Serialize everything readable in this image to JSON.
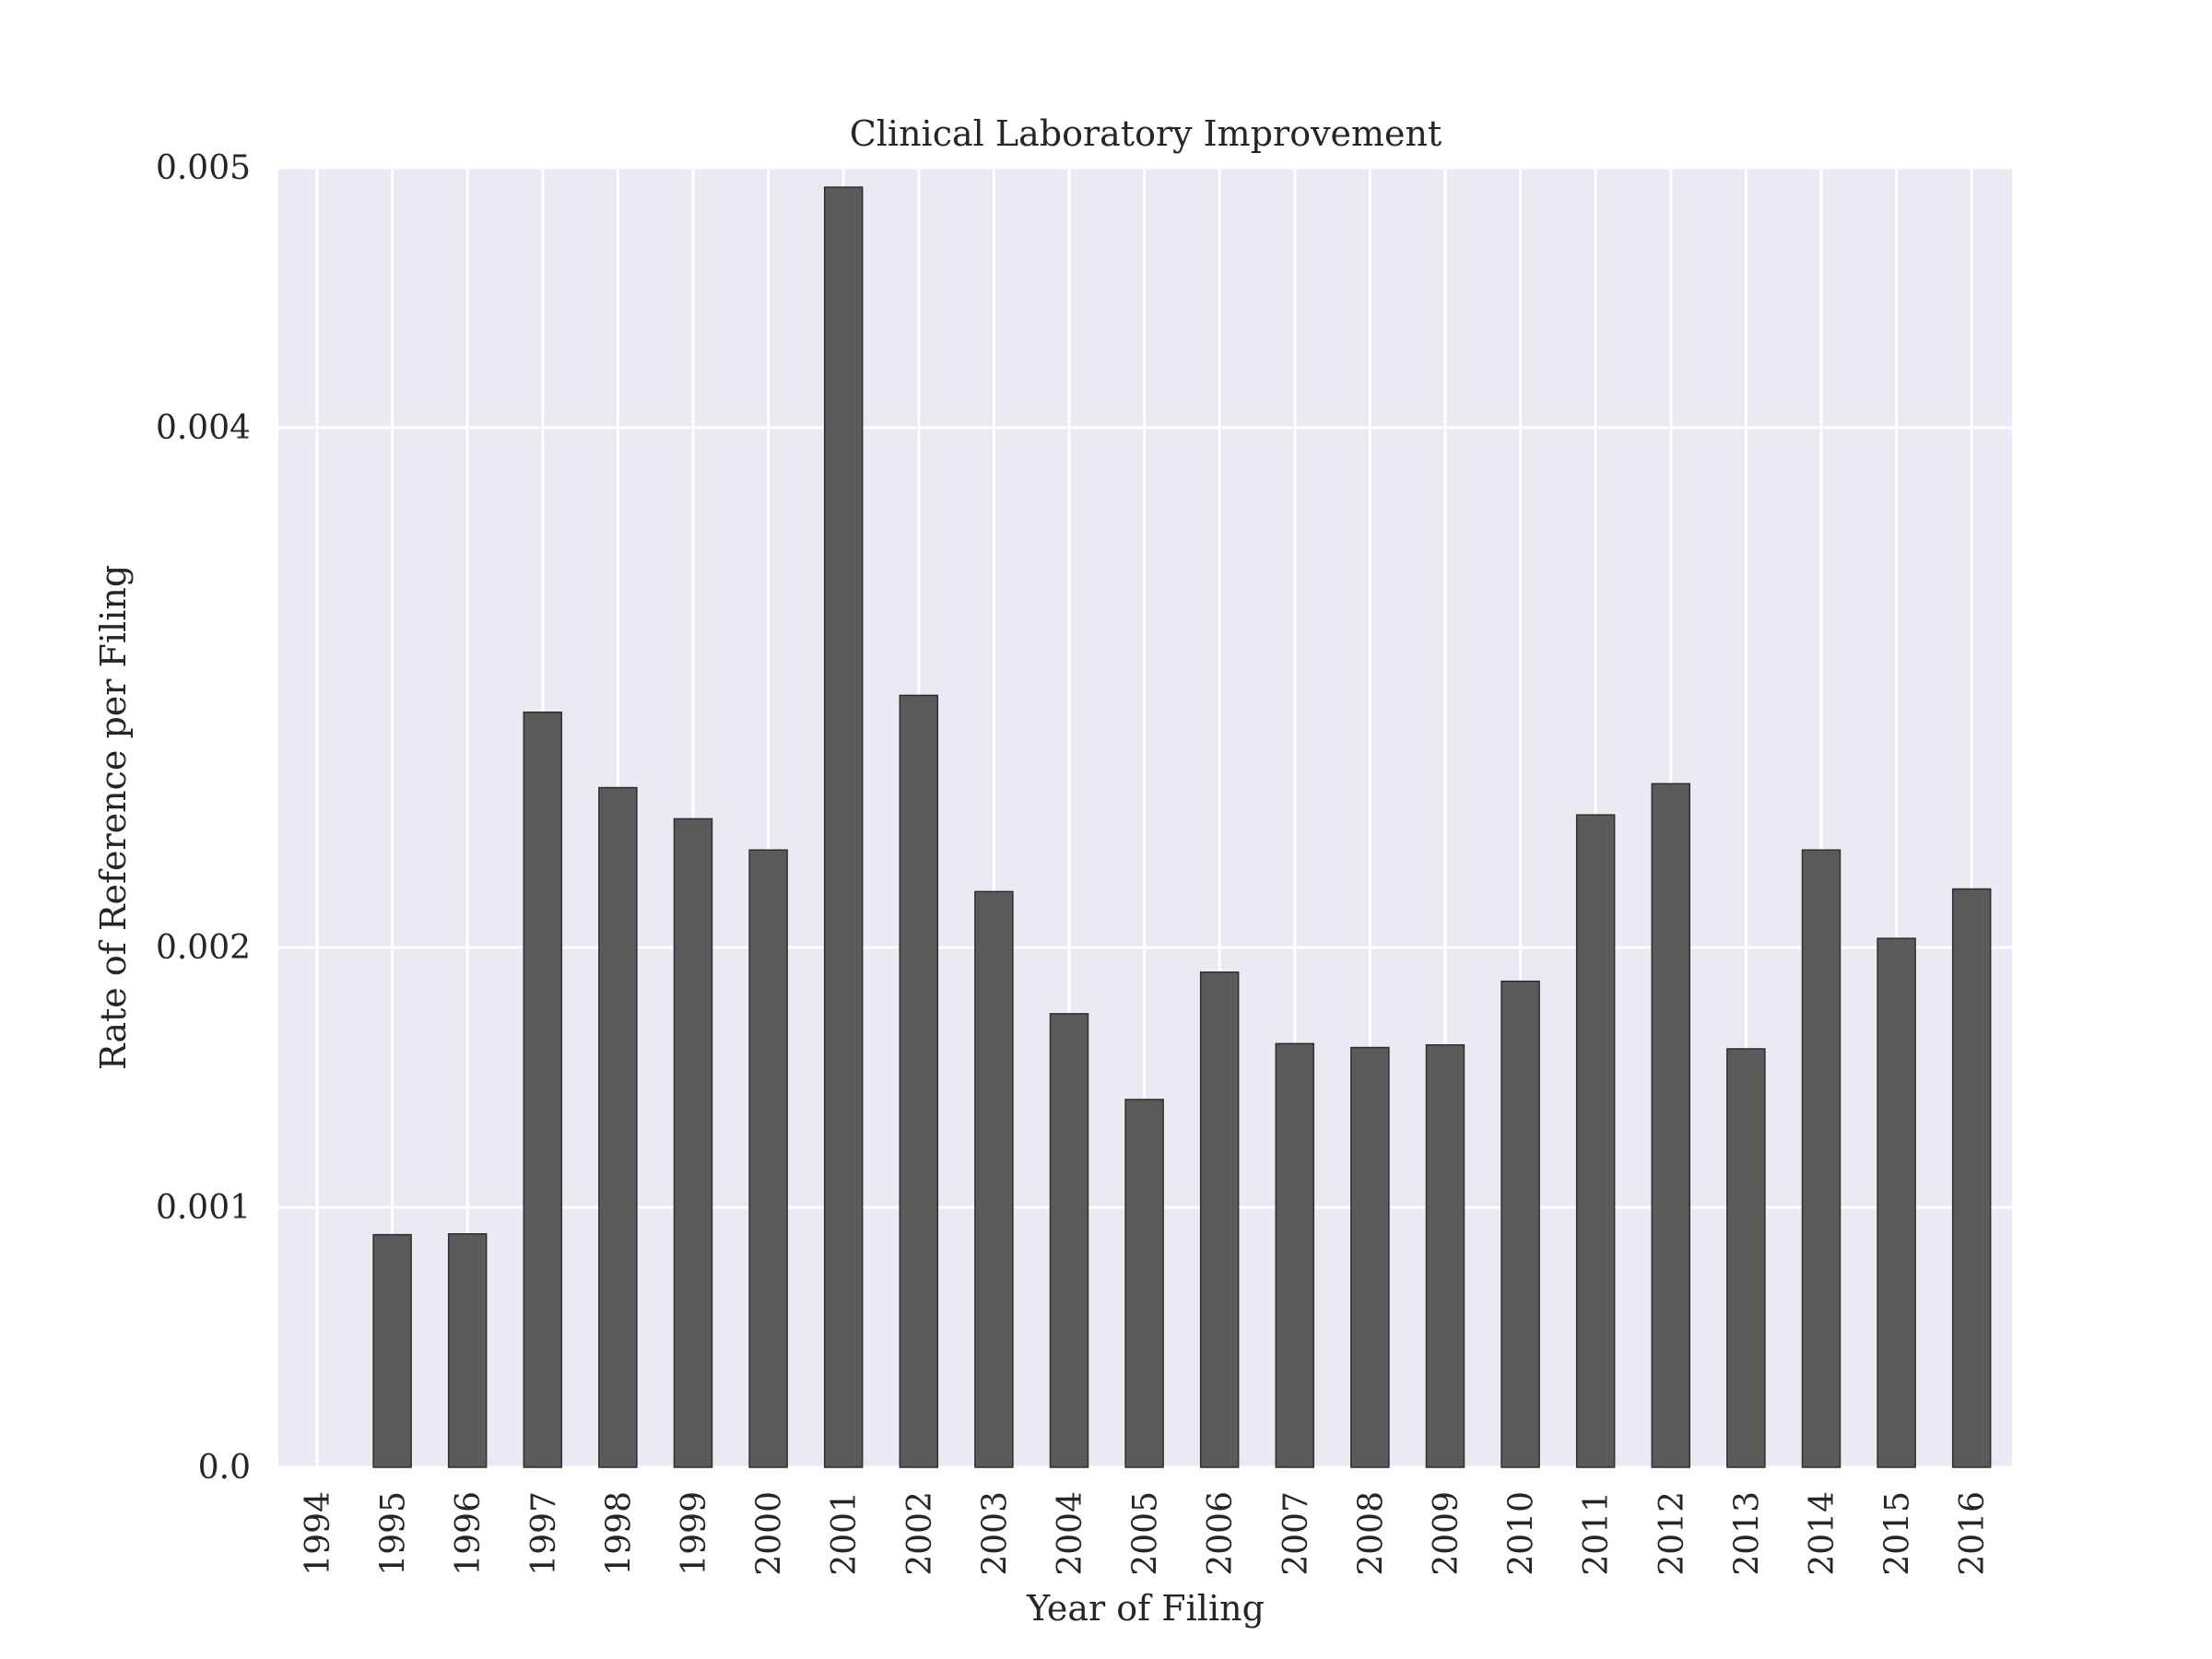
{
  "chart_data": {
    "type": "bar",
    "title": "Clinical Laboratory Improvement",
    "xlabel": "Year of Filing",
    "ylabel": "Rate of Reference per Filing",
    "categories": [
      "1994",
      "1995",
      "1996",
      "1997",
      "1998",
      "1999",
      "2000",
      "2001",
      "2002",
      "2003",
      "2004",
      "2005",
      "2006",
      "2007",
      "2008",
      "2009",
      "2010",
      "2011",
      "2012",
      "2013",
      "2014",
      "2015",
      "2016"
    ],
    "values": [
      0.0,
      0.000895,
      0.000898,
      0.002905,
      0.002615,
      0.002495,
      0.002375,
      0.004925,
      0.00297,
      0.002215,
      0.001745,
      0.001415,
      0.001905,
      0.00163,
      0.001615,
      0.001625,
      0.00187,
      0.00251,
      0.00263,
      0.00161,
      0.002375,
      0.002035,
      0.002225
    ],
    "yticks": [
      0.0,
      0.001,
      0.002,
      0.004,
      0.005
    ],
    "ytick_labels": [
      "0.0",
      "0.001",
      "0.002",
      "0.004",
      "0.005"
    ],
    "ylim": [
      0,
      0.005
    ],
    "grid": true,
    "colors": {
      "bar": "#5a5a5b",
      "bar_edge": "#2e2e2e",
      "plot_background": "#eaeaf2",
      "grid": "#ffffff"
    }
  }
}
